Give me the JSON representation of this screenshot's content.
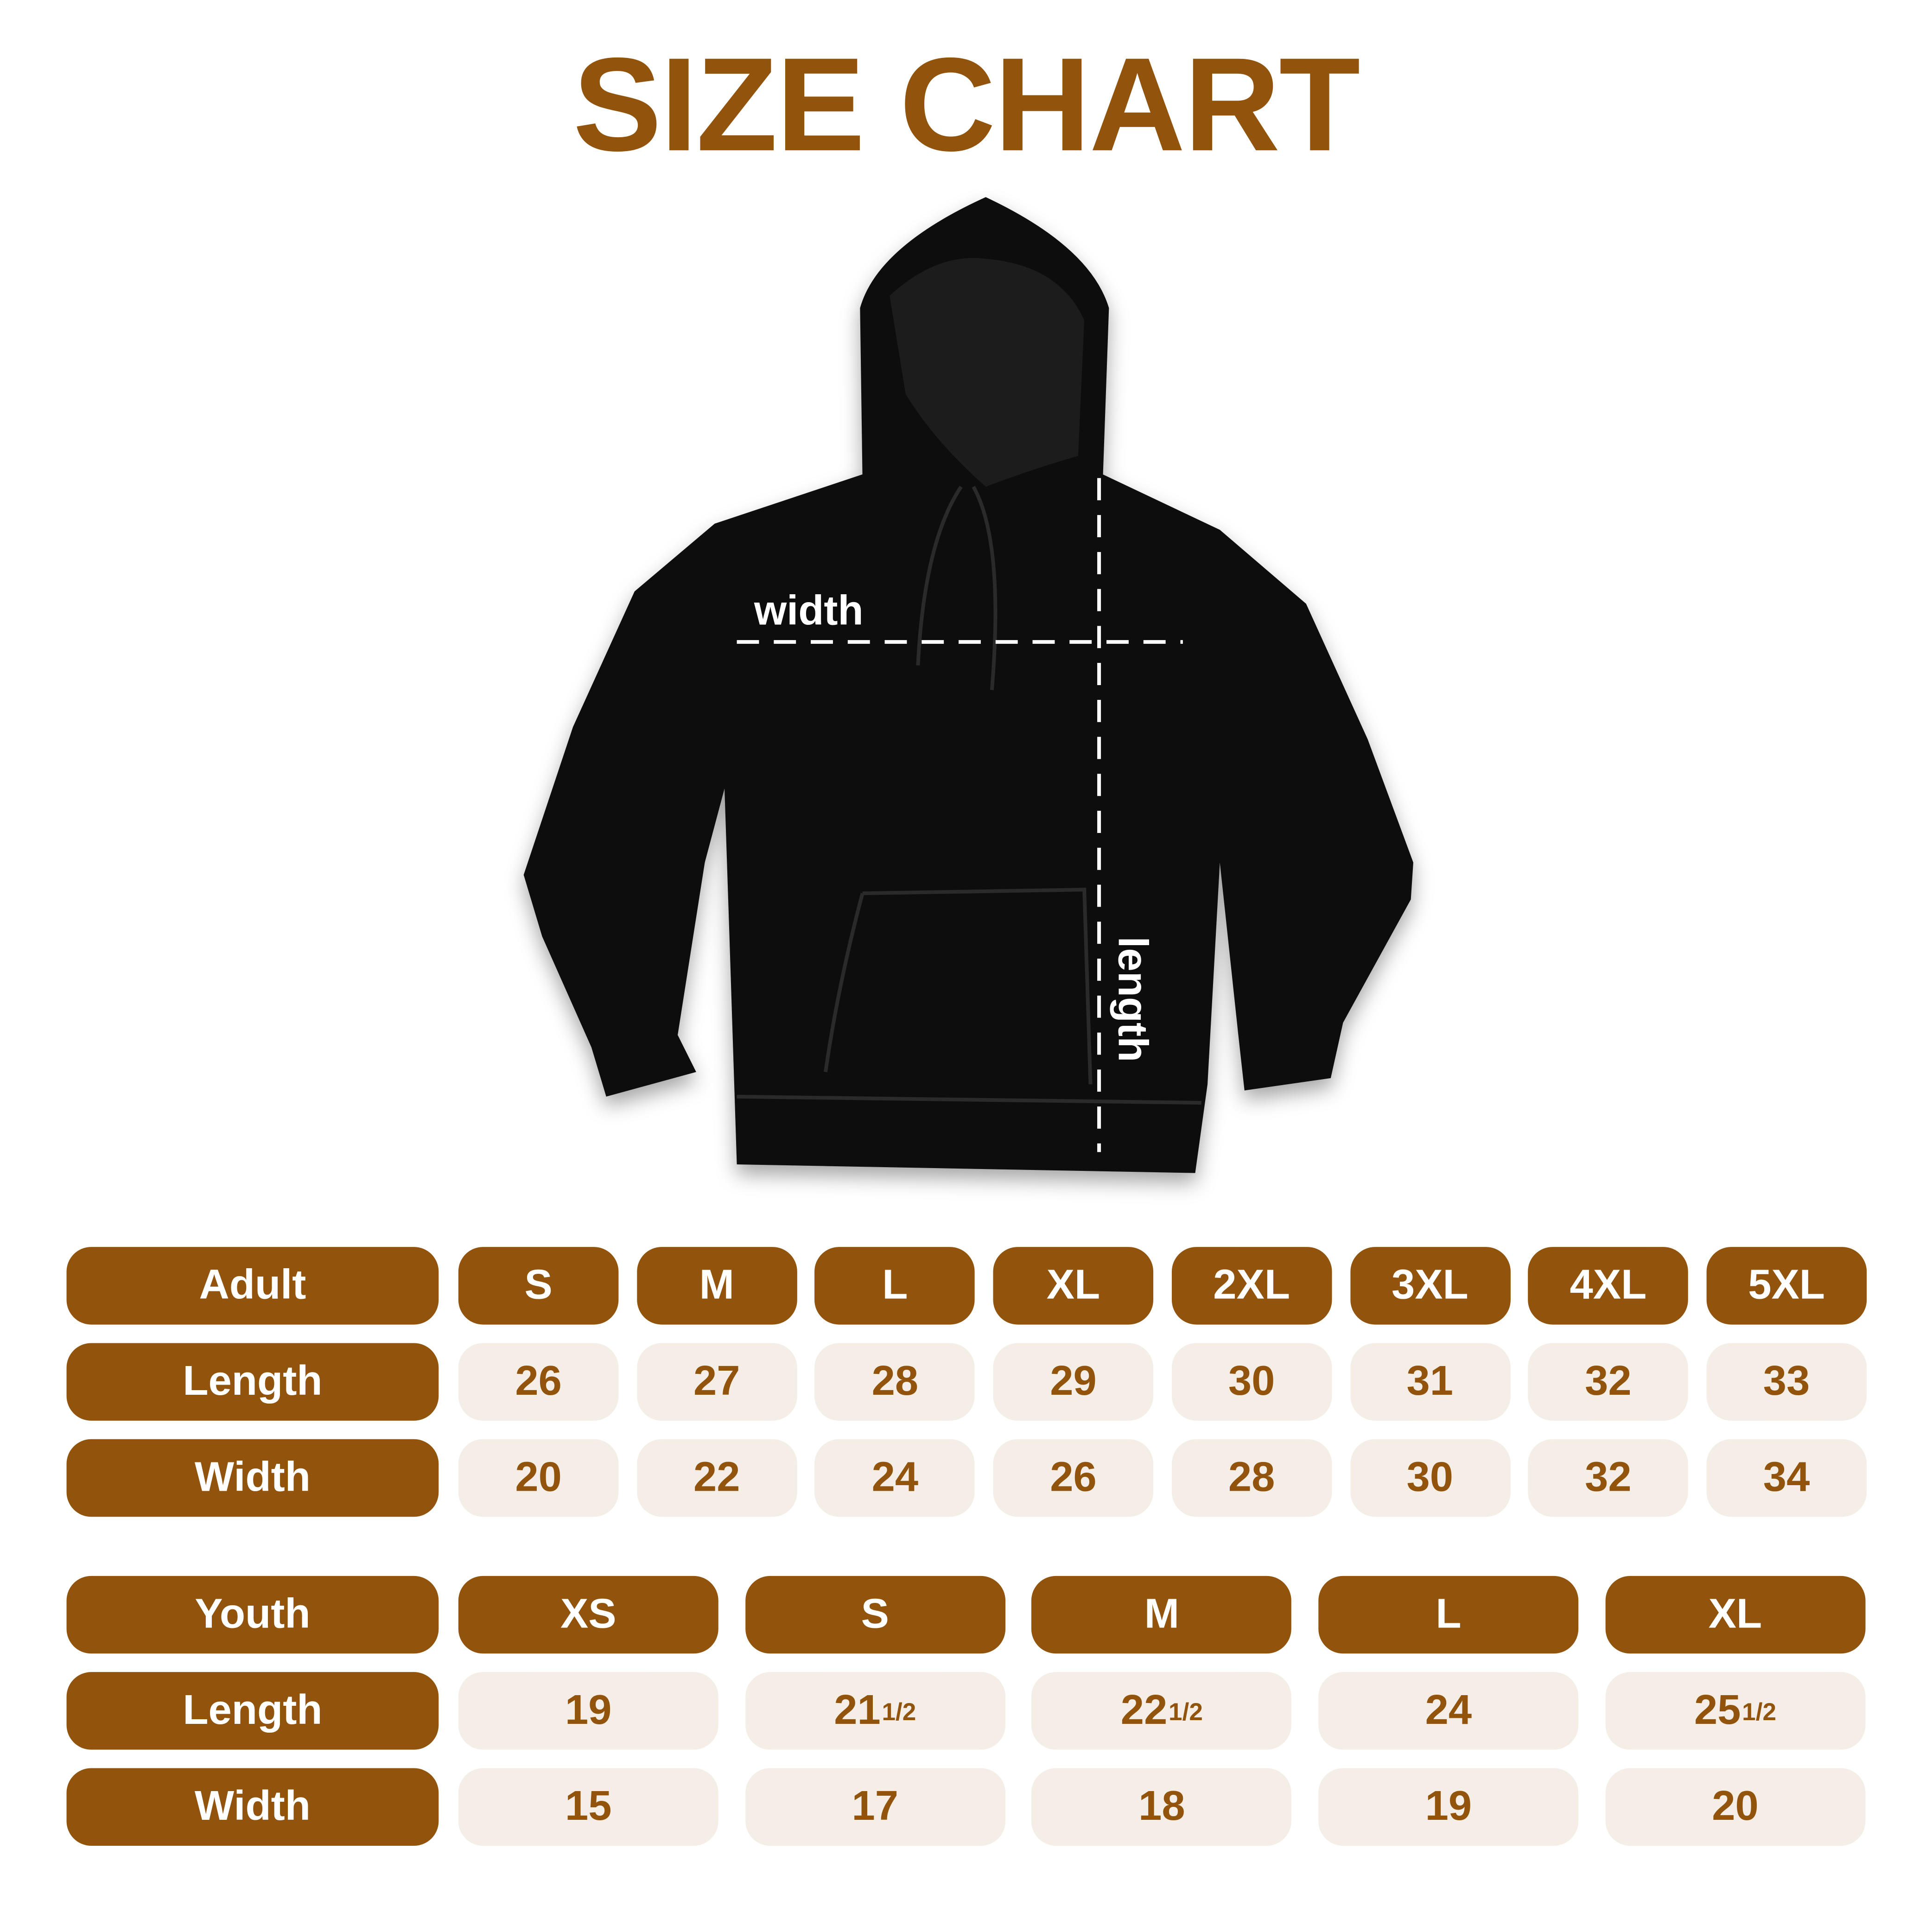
{
  "title": "SIZE CHART",
  "colors": {
    "accent": "#92540c",
    "cell_bg": "#f4eee6",
    "header_text": "#ffffff"
  },
  "diagram": {
    "width_label": "width",
    "length_label": "length"
  },
  "adult": {
    "header": "Adult",
    "sizes": [
      "S",
      "M",
      "L",
      "XL",
      "2XL",
      "3XL",
      "4XL",
      "5XL"
    ],
    "rows": [
      {
        "label": "Length",
        "values": [
          {
            "whole": "26"
          },
          {
            "whole": "27"
          },
          {
            "whole": "28"
          },
          {
            "whole": "29"
          },
          {
            "whole": "30"
          },
          {
            "whole": "31"
          },
          {
            "whole": "32"
          },
          {
            "whole": "33"
          }
        ]
      },
      {
        "label": "Width",
        "values": [
          {
            "whole": "20"
          },
          {
            "whole": "22"
          },
          {
            "whole": "24"
          },
          {
            "whole": "26"
          },
          {
            "whole": "28"
          },
          {
            "whole": "30"
          },
          {
            "whole": "32"
          },
          {
            "whole": "34"
          }
        ]
      }
    ]
  },
  "youth": {
    "header": "Youth",
    "sizes": [
      "XS",
      "S",
      "M",
      "L",
      "XL"
    ],
    "rows": [
      {
        "label": "Length",
        "values": [
          {
            "whole": "19"
          },
          {
            "whole": "21",
            "frac": "1/2"
          },
          {
            "whole": "22",
            "frac": "1/2"
          },
          {
            "whole": "24"
          },
          {
            "whole": "25",
            "frac": "1/2"
          }
        ]
      },
      {
        "label": "Width",
        "values": [
          {
            "whole": "15"
          },
          {
            "whole": "17"
          },
          {
            "whole": "18"
          },
          {
            "whole": "19"
          },
          {
            "whole": "20"
          }
        ]
      }
    ]
  }
}
